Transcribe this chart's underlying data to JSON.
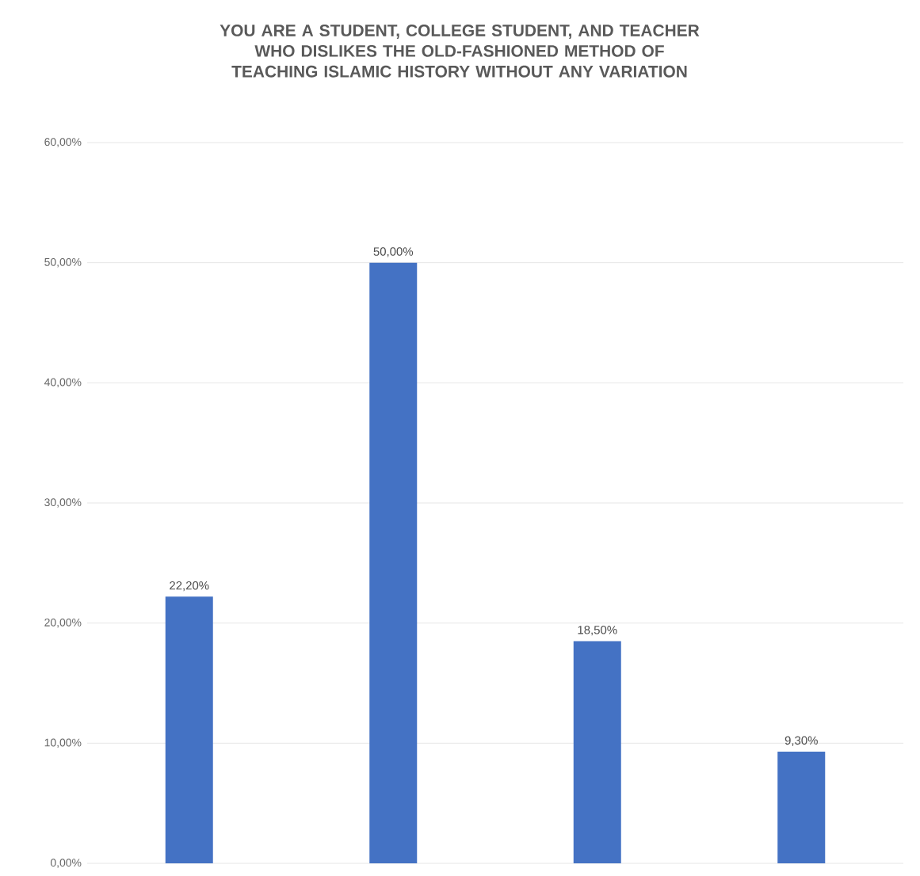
{
  "chart_data": {
    "type": "bar",
    "title": "YOU ARE A STUDENT, COLLEGE STUDENT, AND TEACHER WHO DISLIKES THE OLD-FASHIONED METHOD OF TEACHING ISLAMIC HISTORY WITHOUT ANY VARIATION",
    "categories": [
      null,
      null,
      null,
      null
    ],
    "values": [
      22.2,
      50.0,
      18.5,
      9.3
    ],
    "value_labels": [
      "22,20%",
      "50,00%",
      "18,50%",
      "9,30%"
    ],
    "color": "#4472c4",
    "ylim": [
      0,
      60
    ],
    "yticks": [
      {
        "value": 0,
        "label": "0,00%"
      },
      {
        "value": 10,
        "label": "10,00%"
      },
      {
        "value": 20,
        "label": "20,00%"
      },
      {
        "value": 30,
        "label": "30,00%"
      },
      {
        "value": 40,
        "label": "40,00%"
      },
      {
        "value": 50,
        "label": "50,00%"
      },
      {
        "value": 60,
        "label": "60,00%"
      }
    ],
    "grid": "y"
  }
}
